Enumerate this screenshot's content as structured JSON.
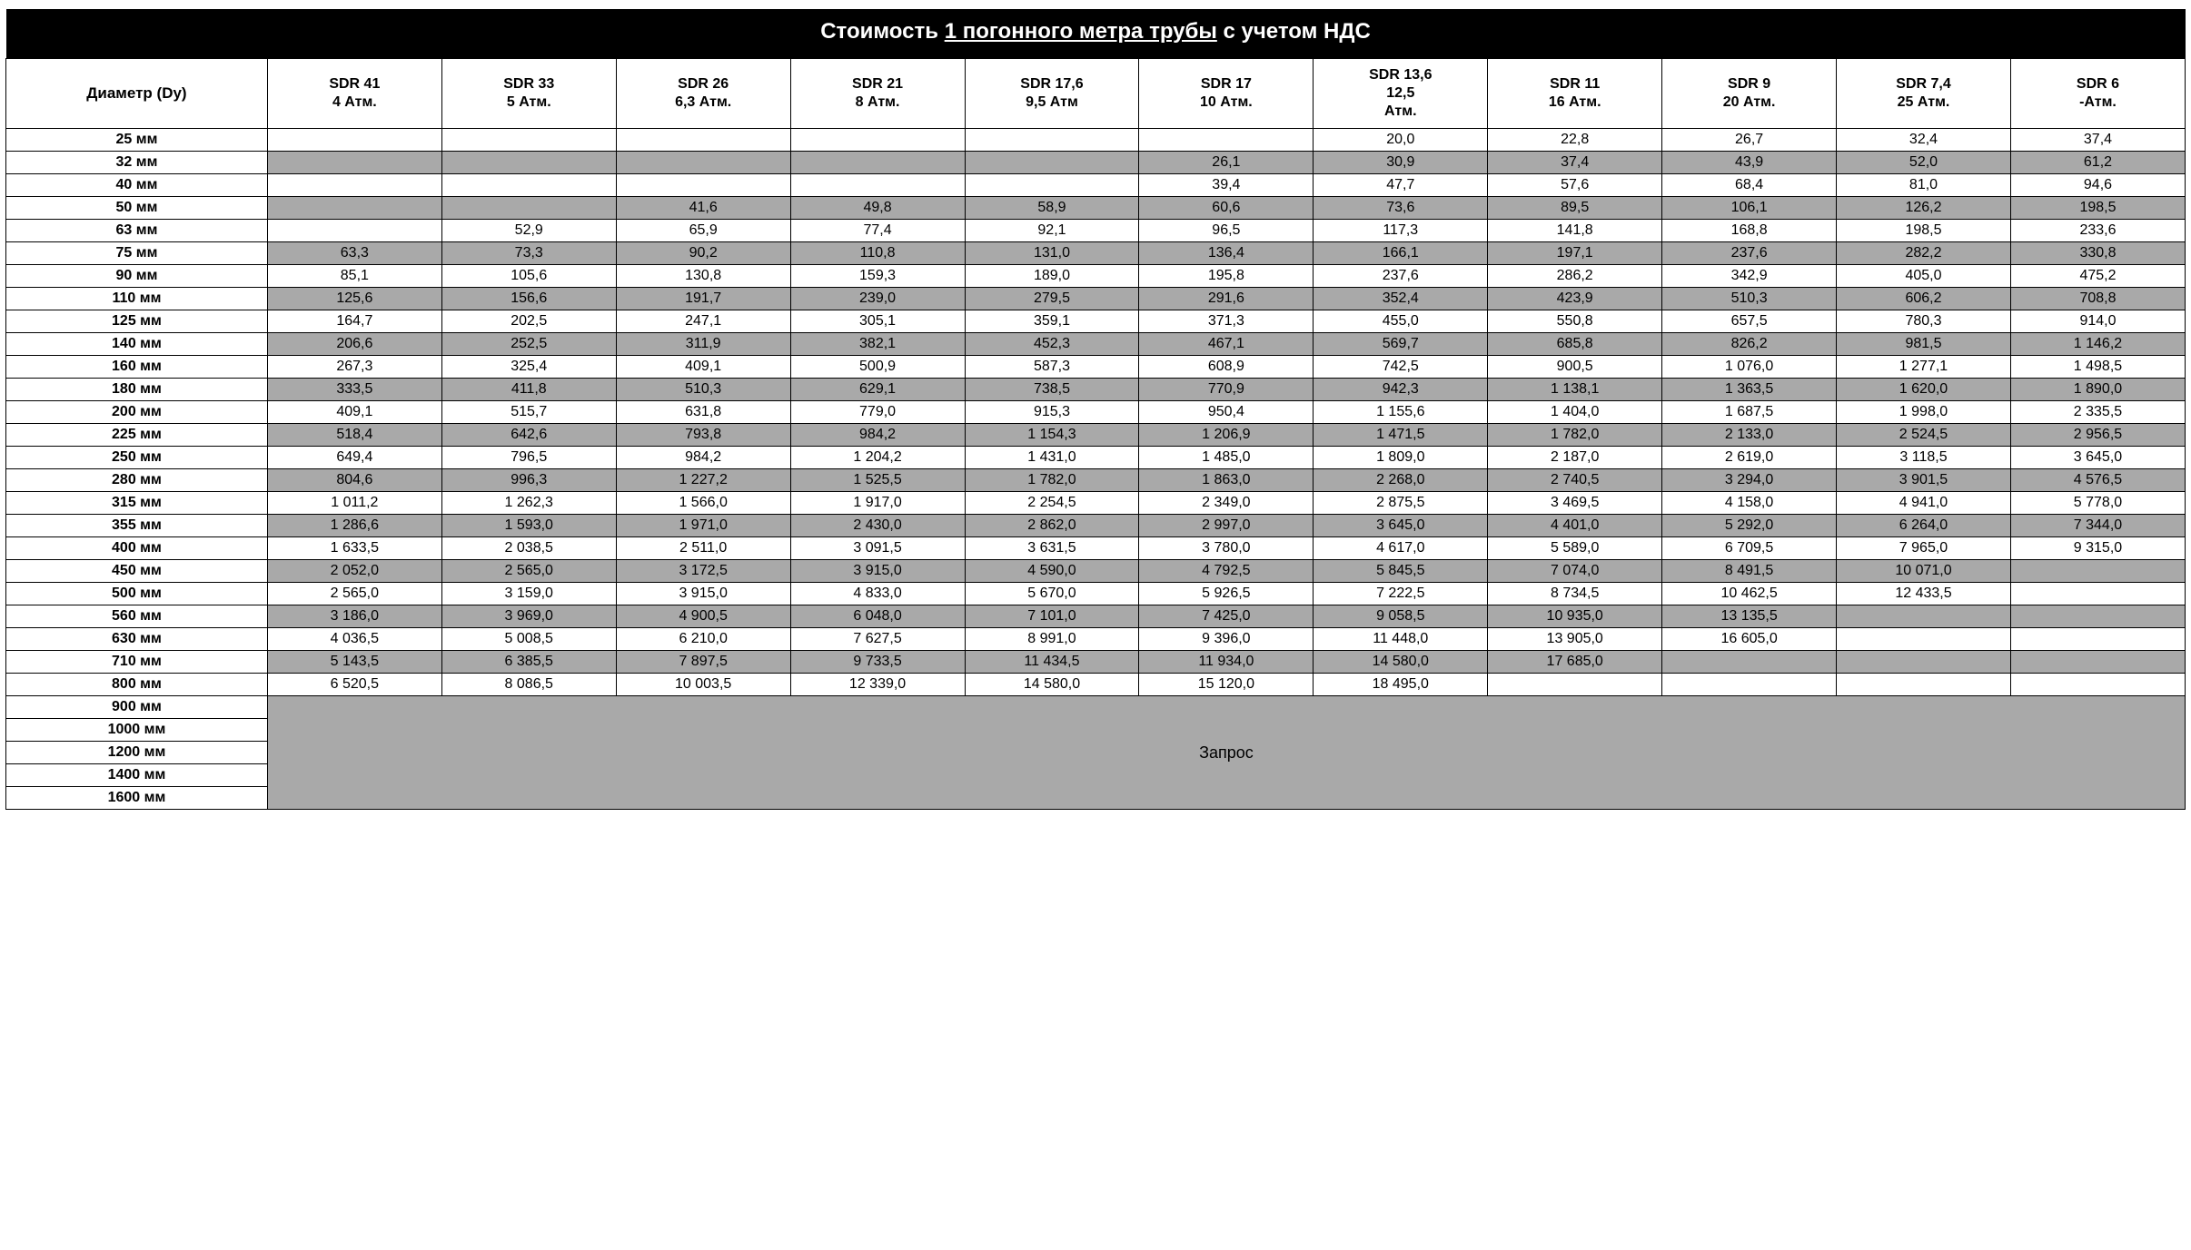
{
  "title_prefix": "Стоимость ",
  "title_underline": "1 погонного метра трубы",
  "title_suffix": " с учетом НДС",
  "header_first": "Диаметр (Dy)",
  "columns": [
    {
      "l1": "SDR 41",
      "l2": "4 Атм."
    },
    {
      "l1": "SDR 33",
      "l2": "5 Атм."
    },
    {
      "l1": "SDR 26",
      "l2": "6,3 Атм."
    },
    {
      "l1": "SDR 21",
      "l2": "8 Атм."
    },
    {
      "l1": "SDR 17,6",
      "l2": "9,5 Атм"
    },
    {
      "l1": "SDR 17",
      "l2": "10 Атм."
    },
    {
      "l1": "SDR 13,6",
      "l2": "12,5",
      "l3": "Атм."
    },
    {
      "l1": "SDR 11",
      "l2": "16 Атм."
    },
    {
      "l1": "SDR 9",
      "l2": "20 Атм."
    },
    {
      "l1": "SDR 7,4",
      "l2": "25 Атм."
    },
    {
      "l1": "SDR 6",
      "l2": "-Атм."
    }
  ],
  "rows": [
    {
      "d": "25 мм",
      "shaded": false,
      "v": [
        "",
        "",
        "",
        "",
        "",
        "",
        "20,0",
        "22,8",
        "26,7",
        "32,4",
        "37,4"
      ]
    },
    {
      "d": "32 мм",
      "shaded": true,
      "v": [
        "",
        "",
        "",
        "",
        "",
        "26,1",
        "30,9",
        "37,4",
        "43,9",
        "52,0",
        "61,2"
      ]
    },
    {
      "d": "40 мм",
      "shaded": false,
      "v": [
        "",
        "",
        "",
        "",
        "",
        "39,4",
        "47,7",
        "57,6",
        "68,4",
        "81,0",
        "94,6"
      ]
    },
    {
      "d": "50 мм",
      "shaded": true,
      "v": [
        "",
        "",
        "41,6",
        "49,8",
        "58,9",
        "60,6",
        "73,6",
        "89,5",
        "106,1",
        "126,2",
        "198,5"
      ]
    },
    {
      "d": "63 мм",
      "shaded": false,
      "v": [
        "",
        "52,9",
        "65,9",
        "77,4",
        "92,1",
        "96,5",
        "117,3",
        "141,8",
        "168,8",
        "198,5",
        "233,6"
      ]
    },
    {
      "d": "75 мм",
      "shaded": true,
      "v": [
        "63,3",
        "73,3",
        "90,2",
        "110,8",
        "131,0",
        "136,4",
        "166,1",
        "197,1",
        "237,6",
        "282,2",
        "330,8"
      ]
    },
    {
      "d": "90 мм",
      "shaded": false,
      "v": [
        "85,1",
        "105,6",
        "130,8",
        "159,3",
        "189,0",
        "195,8",
        "237,6",
        "286,2",
        "342,9",
        "405,0",
        "475,2"
      ]
    },
    {
      "d": "110 мм",
      "shaded": true,
      "v": [
        "125,6",
        "156,6",
        "191,7",
        "239,0",
        "279,5",
        "291,6",
        "352,4",
        "423,9",
        "510,3",
        "606,2",
        "708,8"
      ]
    },
    {
      "d": "125 мм",
      "shaded": false,
      "v": [
        "164,7",
        "202,5",
        "247,1",
        "305,1",
        "359,1",
        "371,3",
        "455,0",
        "550,8",
        "657,5",
        "780,3",
        "914,0"
      ]
    },
    {
      "d": "140 мм",
      "shaded": true,
      "v": [
        "206,6",
        "252,5",
        "311,9",
        "382,1",
        "452,3",
        "467,1",
        "569,7",
        "685,8",
        "826,2",
        "981,5",
        "1 146,2"
      ]
    },
    {
      "d": "160 мм",
      "shaded": false,
      "v": [
        "267,3",
        "325,4",
        "409,1",
        "500,9",
        "587,3",
        "608,9",
        "742,5",
        "900,5",
        "1 076,0",
        "1 277,1",
        "1 498,5"
      ]
    },
    {
      "d": "180 мм",
      "shaded": true,
      "v": [
        "333,5",
        "411,8",
        "510,3",
        "629,1",
        "738,5",
        "770,9",
        "942,3",
        "1 138,1",
        "1 363,5",
        "1 620,0",
        "1 890,0"
      ]
    },
    {
      "d": "200 мм",
      "shaded": false,
      "v": [
        "409,1",
        "515,7",
        "631,8",
        "779,0",
        "915,3",
        "950,4",
        "1 155,6",
        "1 404,0",
        "1 687,5",
        "1 998,0",
        "2 335,5"
      ]
    },
    {
      "d": "225 мм",
      "shaded": true,
      "v": [
        "518,4",
        "642,6",
        "793,8",
        "984,2",
        "1 154,3",
        "1 206,9",
        "1 471,5",
        "1 782,0",
        "2 133,0",
        "2 524,5",
        "2 956,5"
      ]
    },
    {
      "d": "250 мм",
      "shaded": false,
      "v": [
        "649,4",
        "796,5",
        "984,2",
        "1 204,2",
        "1 431,0",
        "1 485,0",
        "1 809,0",
        "2 187,0",
        "2 619,0",
        "3 118,5",
        "3 645,0"
      ]
    },
    {
      "d": "280 мм",
      "shaded": true,
      "v": [
        "804,6",
        "996,3",
        "1 227,2",
        "1 525,5",
        "1 782,0",
        "1 863,0",
        "2 268,0",
        "2 740,5",
        "3 294,0",
        "3 901,5",
        "4 576,5"
      ]
    },
    {
      "d": "315 мм",
      "shaded": false,
      "v": [
        "1 011,2",
        "1 262,3",
        "1 566,0",
        "1 917,0",
        "2 254,5",
        "2 349,0",
        "2 875,5",
        "3 469,5",
        "4 158,0",
        "4 941,0",
        "5 778,0"
      ]
    },
    {
      "d": "355 мм",
      "shaded": true,
      "v": [
        "1 286,6",
        "1 593,0",
        "1 971,0",
        "2 430,0",
        "2 862,0",
        "2 997,0",
        "3 645,0",
        "4 401,0",
        "5 292,0",
        "6 264,0",
        "7 344,0"
      ]
    },
    {
      "d": "400 мм",
      "shaded": false,
      "v": [
        "1 633,5",
        "2 038,5",
        "2 511,0",
        "3 091,5",
        "3 631,5",
        "3 780,0",
        "4 617,0",
        "5 589,0",
        "6 709,5",
        "7 965,0",
        "9 315,0"
      ]
    },
    {
      "d": "450 мм",
      "shaded": true,
      "v": [
        "2 052,0",
        "2 565,0",
        "3 172,5",
        "3 915,0",
        "4 590,0",
        "4 792,5",
        "5 845,5",
        "7 074,0",
        "8 491,5",
        "10 071,0",
        ""
      ]
    },
    {
      "d": "500 мм",
      "shaded": false,
      "v": [
        "2 565,0",
        "3 159,0",
        "3 915,0",
        "4 833,0",
        "5 670,0",
        "5 926,5",
        "7 222,5",
        "8 734,5",
        "10 462,5",
        "12 433,5",
        ""
      ]
    },
    {
      "d": "560 мм",
      "shaded": true,
      "v": [
        "3 186,0",
        "3 969,0",
        "4 900,5",
        "6 048,0",
        "7 101,0",
        "7 425,0",
        "9 058,5",
        "10 935,0",
        "13 135,5",
        "",
        ""
      ]
    },
    {
      "d": "630 мм",
      "shaded": false,
      "v": [
        "4 036,5",
        "5 008,5",
        "6 210,0",
        "7 627,5",
        "8 991,0",
        "9 396,0",
        "11 448,0",
        "13 905,0",
        "16 605,0",
        "",
        ""
      ]
    },
    {
      "d": "710 мм",
      "shaded": true,
      "v": [
        "5 143,5",
        "6 385,5",
        "7 897,5",
        "9 733,5",
        "11 434,5",
        "11 934,0",
        "14 580,0",
        "17 685,0",
        "",
        "",
        ""
      ]
    },
    {
      "d": "800 мм",
      "shaded": false,
      "v": [
        "6 520,5",
        "8 086,5",
        "10 003,5",
        "12 339,0",
        "14 580,0",
        "15 120,0",
        "18 495,0",
        "",
        "",
        "",
        ""
      ]
    }
  ],
  "merged_label": "Запрос",
  "merged_diameters": [
    "900 мм",
    "1000 мм",
    "1200 мм",
    "1400 мм",
    "1600 мм"
  ],
  "colors": {
    "title_bg": "#000000",
    "title_fg": "#ffffff",
    "shaded_bg": "#a9a9a9",
    "plain_bg": "#ffffff",
    "border": "#000000"
  }
}
